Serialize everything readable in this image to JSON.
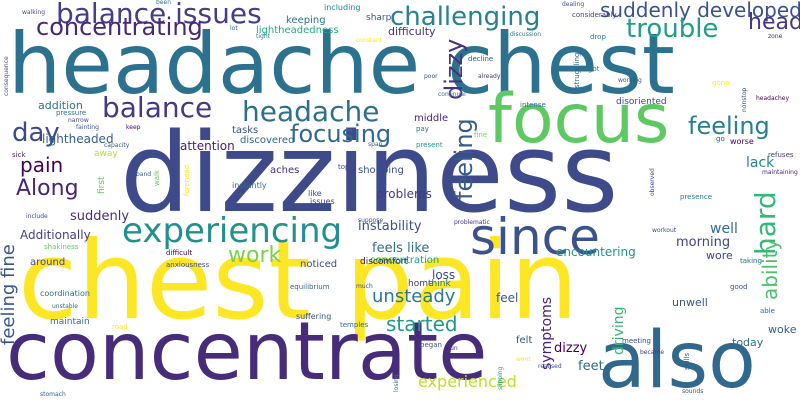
{
  "words": [
    {
      "text": "dizziness",
      "color": "#3e4a89"
    },
    {
      "text": "chest pain",
      "color": "#fde725"
    },
    {
      "text": "headache chest",
      "color": "#2c728e"
    },
    {
      "text": "concentrate",
      "color": "#472c7a"
    },
    {
      "text": "also",
      "color": "#31688e"
    },
    {
      "text": "focus",
      "color": "#5ec962"
    },
    {
      "text": "since",
      "color": "#3b528b"
    },
    {
      "text": "experiencing",
      "color": "#21918c"
    },
    {
      "text": "balance issues",
      "color": "#433e85"
    },
    {
      "text": "concentrating",
      "color": "#482878"
    },
    {
      "text": "challenging",
      "color": "#26828e"
    },
    {
      "text": "suddenly developed",
      "color": "#3b528b"
    },
    {
      "text": "trouble",
      "color": "#1f9e89"
    },
    {
      "text": "head",
      "color": "#453781"
    },
    {
      "text": "balance",
      "color": "#443a83"
    },
    {
      "text": "headache",
      "color": "#2d708e"
    },
    {
      "text": "day",
      "color": "#3e4989"
    },
    {
      "text": "focusing",
      "color": "#31688e"
    },
    {
      "text": "feeling",
      "color": "#27808e"
    },
    {
      "text": "pain",
      "color": "#440154"
    },
    {
      "text": "Along",
      "color": "#482475"
    },
    {
      "text": "dizzy",
      "color": "#46327e"
    },
    {
      "text": "feeling",
      "color": "#365c8d"
    },
    {
      "text": "hard",
      "color": "#35b779"
    },
    {
      "text": "ability",
      "color": "#4ac16d"
    },
    {
      "text": "work",
      "color": "#7ad151"
    },
    {
      "text": "unsteady",
      "color": "#2a788e"
    },
    {
      "text": "started",
      "color": "#1f9a8a"
    },
    {
      "text": "experienced",
      "color": "#bddf26"
    },
    {
      "text": "feeling fine",
      "color": "#39568c"
    },
    {
      "text": "symptoms",
      "color": "#482173"
    },
    {
      "text": "driving",
      "color": "#35b779"
    },
    {
      "text": "dizzy",
      "color": "#440154"
    },
    {
      "text": "well",
      "color": "#2f6c8e"
    },
    {
      "text": "morning",
      "color": "#404688"
    },
    {
      "text": "woke",
      "color": "#38588c"
    },
    {
      "text": "lack",
      "color": "#24878e"
    },
    {
      "text": "feels like",
      "color": "#2e6e8e"
    },
    {
      "text": "instability",
      "color": "#3b518b"
    },
    {
      "text": "problems",
      "color": "#443b84"
    },
    {
      "text": "suddenly",
      "color": "#472d7b"
    },
    {
      "text": "Additionally",
      "color": "#423f85"
    },
    {
      "text": "concentration",
      "color": "#1fa188"
    },
    {
      "text": "lightheaded",
      "color": "#355f8d"
    },
    {
      "text": "attention",
      "color": "#481d6f"
    },
    {
      "text": "addition",
      "color": "#2a788e"
    },
    {
      "text": "feel",
      "color": "#39558c"
    },
    {
      "text": "loss",
      "color": "#3f4889"
    },
    {
      "text": "feet",
      "color": "#2e6d8e"
    },
    {
      "text": "unwell",
      "color": "#3b528b"
    },
    {
      "text": "wore",
      "color": "#404588"
    },
    {
      "text": "today",
      "color": "#2c718e"
    },
    {
      "text": "encountering",
      "color": "#20928c"
    },
    {
      "text": "shopping",
      "color": "#3c4f8a"
    },
    {
      "text": "aches",
      "color": "#472f7d"
    },
    {
      "text": "discovered",
      "color": "#33638d"
    },
    {
      "text": "tasks",
      "color": "#3b518b"
    },
    {
      "text": "middle",
      "color": "#482576"
    },
    {
      "text": "keeping",
      "color": "#2c738e"
    },
    {
      "text": "lightheadedness",
      "color": "#25ab82"
    },
    {
      "text": "difficulty",
      "color": "#46307e"
    },
    {
      "text": "around",
      "color": "#404688"
    },
    {
      "text": "coordination",
      "color": "#30698e"
    },
    {
      "text": "maintain",
      "color": "#2c728e"
    },
    {
      "text": "noticed",
      "color": "#3e4a89"
    },
    {
      "text": "home",
      "color": "#453882"
    },
    {
      "text": "think",
      "color": "#2a788e"
    },
    {
      "text": "felt",
      "color": "#39568c"
    },
    {
      "text": "discomfort",
      "color": "#471365"
    },
    {
      "text": "sharp",
      "color": "#38598c"
    },
    {
      "text": "including",
      "color": "#26828e"
    },
    {
      "text": "first",
      "color": "#5ec962"
    },
    {
      "text": "away",
      "color": "#b5de2b"
    },
    {
      "text": "like",
      "color": "#3e4a89"
    },
    {
      "text": "issues",
      "color": "#433d84"
    },
    {
      "text": "instantly",
      "color": "#2d708e"
    },
    {
      "text": "suffering",
      "color": "#3c508b"
    },
    {
      "text": "walking",
      "color": "#3e4a89"
    },
    {
      "text": "lot",
      "color": "#31688e"
    },
    {
      "text": "tight",
      "color": "#287d8e"
    },
    {
      "text": "drop",
      "color": "#2a788e"
    },
    {
      "text": "dealing",
      "color": "#3b528b"
    },
    {
      "text": "considerably",
      "color": "#433d84"
    },
    {
      "text": "zone",
      "color": "#481f70"
    },
    {
      "text": "pressure",
      "color": "#2c728e"
    },
    {
      "text": "narrow",
      "color": "#3f4788"
    },
    {
      "text": "fainting",
      "color": "#3b528b"
    },
    {
      "text": "keep",
      "color": "#440154"
    },
    {
      "text": "capacity",
      "color": "#39568c"
    },
    {
      "text": "sick",
      "color": "#481769"
    },
    {
      "text": "include",
      "color": "#3e4a89"
    },
    {
      "text": "unstable",
      "color": "#2d708e"
    },
    {
      "text": "decline",
      "color": "#38598c"
    },
    {
      "text": "already",
      "color": "#46327e"
    },
    {
      "text": "continual",
      "color": "#31688e"
    },
    {
      "text": "poor",
      "color": "#3b528b"
    },
    {
      "text": "intense",
      "color": "#2c728e"
    },
    {
      "text": "disoriented",
      "color": "#3f4788"
    },
    {
      "text": "worse",
      "color": "#440154"
    },
    {
      "text": "refuses",
      "color": "#453882"
    },
    {
      "text": "maintaining",
      "color": "#481f70"
    },
    {
      "text": "go",
      "color": "#3b528b"
    },
    {
      "text": "pay",
      "color": "#2a788e"
    },
    {
      "text": "fine",
      "color": "#73d056"
    },
    {
      "text": "present",
      "color": "#1f9e89"
    },
    {
      "text": "topic",
      "color": "#3e4a89"
    },
    {
      "text": "band",
      "color": "#38598c"
    },
    {
      "text": "walk",
      "color": "#5ec962"
    },
    {
      "text": "forehead",
      "color": "#fde725"
    },
    {
      "text": "suppose",
      "color": "#3b528b"
    },
    {
      "text": "difficult",
      "color": "#440154"
    },
    {
      "text": "anxiousness",
      "color": "#3e4a89"
    },
    {
      "text": "equilibrium",
      "color": "#31688e"
    },
    {
      "text": "much",
      "color": "#3f4788"
    },
    {
      "text": "problematic",
      "color": "#46327e"
    },
    {
      "text": "workout",
      "color": "#3b528b"
    },
    {
      "text": "taking",
      "color": "#2c728e"
    },
    {
      "text": "good",
      "color": "#3b528b"
    },
    {
      "text": "able",
      "color": "#31688e"
    },
    {
      "text": "meeting",
      "color": "#3b528b"
    },
    {
      "text": "became",
      "color": "#46327e"
    },
    {
      "text": "skills",
      "color": "#38598c"
    },
    {
      "text": "went",
      "color": "#fde725"
    },
    {
      "text": "realised",
      "color": "#3e4a89"
    },
    {
      "text": "began",
      "color": "#3b528b"
    },
    {
      "text": "slipping",
      "color": "#1f9e89"
    },
    {
      "text": "losing",
      "color": "#2c728e"
    },
    {
      "text": "temples",
      "color": "#31688e"
    },
    {
      "text": "road",
      "color": "#fde725"
    },
    {
      "text": "shakiness",
      "color": "#5ec962"
    },
    {
      "text": "presence",
      "color": "#2a788e"
    },
    {
      "text": "observed",
      "color": "#3e4a89"
    },
    {
      "text": "nonstop",
      "color": "#3f4788"
    },
    {
      "text": "headachey",
      "color": "#440154"
    },
    {
      "text": "gone",
      "color": "#fde725"
    },
    {
      "text": "struggling",
      "color": "#31688e"
    },
    {
      "text": "got",
      "color": "#2c728e"
    },
    {
      "text": "working",
      "color": "#3e4a89"
    },
    {
      "text": "discussion",
      "color": "#2a788e"
    },
    {
      "text": "constant",
      "color": "#fde725"
    },
    {
      "text": "consequence",
      "color": "#3b528b"
    },
    {
      "text": "stomach",
      "color": "#38598c"
    },
    {
      "text": "fun",
      "color": "#46327e"
    },
    {
      "text": "span",
      "color": "#31688e"
    },
    {
      "text": "been",
      "color": "#2c728e"
    },
    {
      "text": "sounds",
      "color": "#3e4a89"
    }
  ]
}
